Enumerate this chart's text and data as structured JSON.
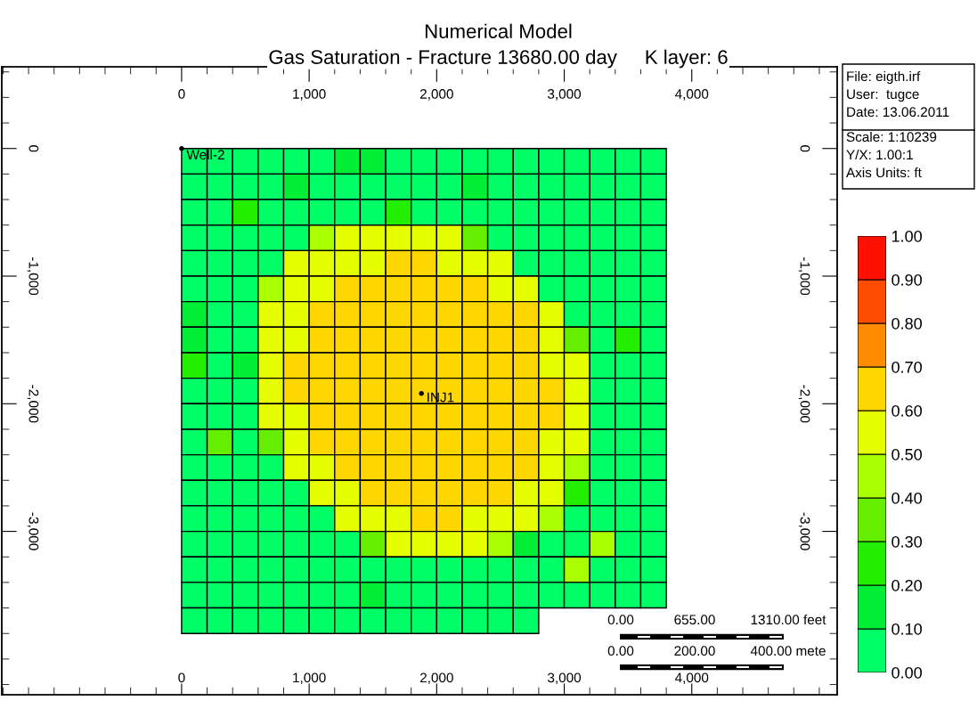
{
  "chart_data": {
    "type": "heatmap",
    "title": "Numerical Model",
    "subtitle": "Gas Saturation - Fracture 13680.00 day     K layer: 6",
    "x": [
      100,
      300,
      500,
      700,
      900,
      1100,
      1300,
      1500,
      1700,
      1900,
      2100,
      2300,
      2500,
      2700,
      2900,
      3100,
      3300,
      3500,
      3700
    ],
    "y": [
      -100,
      -300,
      -500,
      -700,
      -900,
      -1100,
      -1300,
      -1500,
      -1700,
      -1900,
      -2100,
      -2300,
      -2500,
      -2700,
      -2900,
      -3100,
      -3300,
      -3500,
      -3700
    ],
    "cells": [
      [
        0.05,
        0.05,
        0.05,
        0.05,
        0.05,
        0.05,
        0.15,
        0.15,
        0.05,
        0.05,
        0.05,
        0.05,
        0.05,
        0.05,
        0.05,
        0.05,
        0.05,
        0.05,
        0.05
      ],
      [
        0.05,
        0.05,
        0.05,
        0.05,
        0.15,
        0.05,
        0.05,
        0.05,
        0.05,
        0.05,
        0.05,
        0.15,
        0.05,
        0.05,
        0.05,
        0.05,
        0.05,
        0.05,
        0.05
      ],
      [
        0.05,
        0.05,
        0.25,
        0.05,
        0.05,
        0.05,
        0.05,
        0.05,
        0.25,
        0.05,
        0.05,
        0.05,
        0.05,
        0.05,
        0.05,
        0.05,
        0.05,
        0.05,
        0.05
      ],
      [
        0.05,
        0.05,
        0.05,
        0.05,
        0.05,
        0.45,
        0.55,
        0.55,
        0.55,
        0.55,
        0.55,
        0.35,
        0.05,
        0.05,
        0.05,
        0.05,
        0.05,
        0.05,
        0.05
      ],
      [
        0.05,
        0.05,
        0.05,
        0.05,
        0.55,
        0.55,
        0.55,
        0.55,
        0.65,
        0.65,
        0.55,
        0.55,
        0.55,
        0.05,
        0.05,
        0.05,
        0.05,
        0.05,
        0.05
      ],
      [
        0.05,
        0.05,
        0.05,
        0.45,
        0.55,
        0.55,
        0.65,
        0.65,
        0.65,
        0.65,
        0.65,
        0.65,
        0.55,
        0.55,
        0.05,
        0.05,
        0.05,
        0.05,
        0.05
      ],
      [
        0.15,
        0.05,
        0.05,
        0.55,
        0.55,
        0.65,
        0.65,
        0.65,
        0.65,
        0.65,
        0.65,
        0.65,
        0.65,
        0.65,
        0.55,
        0.05,
        0.05,
        0.05,
        0.05
      ],
      [
        0.15,
        0.05,
        0.05,
        0.55,
        0.55,
        0.65,
        0.65,
        0.65,
        0.65,
        0.65,
        0.65,
        0.65,
        0.65,
        0.65,
        0.55,
        0.35,
        0.05,
        0.25,
        0.05
      ],
      [
        0.25,
        0.05,
        0.15,
        0.55,
        0.65,
        0.65,
        0.65,
        0.65,
        0.65,
        0.65,
        0.65,
        0.65,
        0.65,
        0.65,
        0.55,
        0.55,
        0.05,
        0.05,
        0.05
      ],
      [
        0.05,
        0.05,
        0.05,
        0.55,
        0.65,
        0.65,
        0.65,
        0.65,
        0.65,
        0.65,
        0.65,
        0.65,
        0.65,
        0.65,
        0.65,
        0.55,
        0.05,
        0.05,
        0.05
      ],
      [
        0.05,
        0.05,
        0.05,
        0.55,
        0.55,
        0.65,
        0.65,
        0.65,
        0.65,
        0.65,
        0.65,
        0.65,
        0.65,
        0.65,
        0.65,
        0.55,
        0.05,
        0.05,
        0.05
      ],
      [
        0.05,
        0.35,
        0.05,
        0.35,
        0.55,
        0.65,
        0.65,
        0.65,
        0.65,
        0.65,
        0.65,
        0.65,
        0.65,
        0.65,
        0.55,
        0.55,
        0.05,
        0.05,
        0.05
      ],
      [
        0.05,
        0.05,
        0.05,
        0.05,
        0.55,
        0.55,
        0.65,
        0.65,
        0.65,
        0.65,
        0.65,
        0.65,
        0.65,
        0.65,
        0.55,
        0.45,
        0.05,
        0.05,
        0.05
      ],
      [
        0.05,
        0.05,
        0.05,
        0.05,
        0.05,
        0.55,
        0.55,
        0.65,
        0.65,
        0.65,
        0.65,
        0.65,
        0.65,
        0.55,
        0.55,
        0.25,
        0.05,
        0.05,
        0.05
      ],
      [
        0.05,
        0.05,
        0.05,
        0.05,
        0.05,
        0.05,
        0.55,
        0.55,
        0.55,
        0.65,
        0.65,
        0.55,
        0.55,
        0.55,
        0.45,
        0.05,
        0.05,
        0.05,
        0.05
      ],
      [
        0.05,
        0.05,
        0.05,
        0.05,
        0.05,
        0.05,
        0.05,
        0.35,
        0.55,
        0.55,
        0.55,
        0.55,
        0.45,
        0.15,
        0.05,
        0.05,
        0.45,
        0.05,
        0.05
      ],
      [
        0.05,
        0.05,
        0.05,
        0.05,
        0.05,
        0.05,
        0.05,
        0.05,
        0.05,
        0.05,
        0.05,
        0.05,
        0.05,
        0.05,
        0.05,
        0.45,
        0.05,
        0.05,
        0.05
      ],
      [
        0.05,
        0.05,
        0.05,
        0.05,
        0.05,
        0.05,
        0.05,
        0.15,
        0.05,
        0.05,
        0.05,
        0.05,
        0.05,
        0.05,
        0.05,
        0.05,
        0.05,
        0.05,
        0.05
      ],
      [
        0.05,
        0.05,
        0.05,
        0.05,
        0.05,
        0.05,
        0.05,
        0.05,
        0.05,
        0.05,
        0.05,
        0.05,
        0.05,
        0.05,
        null,
        null,
        null,
        null,
        null
      ]
    ],
    "clim": [
      0,
      1
    ],
    "cticks": [
      {
        "value": 0,
        "label": "0.00"
      },
      {
        "value": 0.1,
        "label": "0.10"
      },
      {
        "value": 0.2,
        "label": "0.20"
      },
      {
        "value": 0.3,
        "label": "0.30"
      },
      {
        "value": 0.4,
        "label": "0.40"
      },
      {
        "value": 0.5,
        "label": "0.50"
      },
      {
        "value": 0.6,
        "label": "0.60"
      },
      {
        "value": 0.7,
        "label": "0.70"
      },
      {
        "value": 0.8,
        "label": "0.80"
      },
      {
        "value": 0.9,
        "label": "0.90"
      },
      {
        "value": 1,
        "label": "1.00"
      }
    ],
    "colors": [
      "#00ff66",
      "#00ee33",
      "#22ee00",
      "#66ee00",
      "#aaff00",
      "#e5ff00",
      "#ffd700",
      "#ff8c00",
      "#ff4c00",
      "#ff1100"
    ],
    "xlim": [
      -1410,
      5140
    ],
    "ylim": [
      -4280,
      640
    ],
    "xticks": [
      0,
      {
        "value": 1000,
        "label": "1,000"
      },
      {
        "value": 2000,
        "label": "2,000"
      },
      {
        "value": 3000,
        "label": "3,000"
      },
      {
        "value": 4000,
        "label": "4,000"
      }
    ],
    "x2lim": [
      -1410,
      5140
    ],
    "x2ticks": [
      0,
      {
        "value": 1000,
        "label": "1,000"
      },
      {
        "value": 2000,
        "label": "2,000"
      },
      {
        "value": 3000,
        "label": "3,000"
      },
      {
        "value": 4000,
        "label": "4,000"
      }
    ],
    "yticks": [
      0,
      {
        "value": -1000,
        "label": "-1,000"
      },
      {
        "value": -2000,
        "label": "-2,000"
      },
      {
        "value": -3000,
        "label": "-3,000"
      }
    ],
    "y2lim": [
      -4280,
      640
    ],
    "y2ticks": [
      0,
      {
        "value": -1000,
        "label": "-1,000"
      },
      {
        "value": -2000,
        "label": "-2,000"
      },
      {
        "value": -3000,
        "label": "-3,000"
      }
    ],
    "grid": false,
    "annotations": [
      {
        "text": "Well-2",
        "x": 0,
        "y": 0
      },
      {
        "text": "INJ1",
        "x": 1880,
        "y": -1920
      },
      "File: eigth.irf",
      "User:  tugce",
      "Date: 13.06.2011",
      "Scale: 1:10239",
      "Y/X: 1.00:1",
      "Axis Units: ft",
      "0.00",
      "655.00",
      "1310.00 feet",
      "0.00",
      "200.00",
      "400.00 mete"
    ]
  }
}
